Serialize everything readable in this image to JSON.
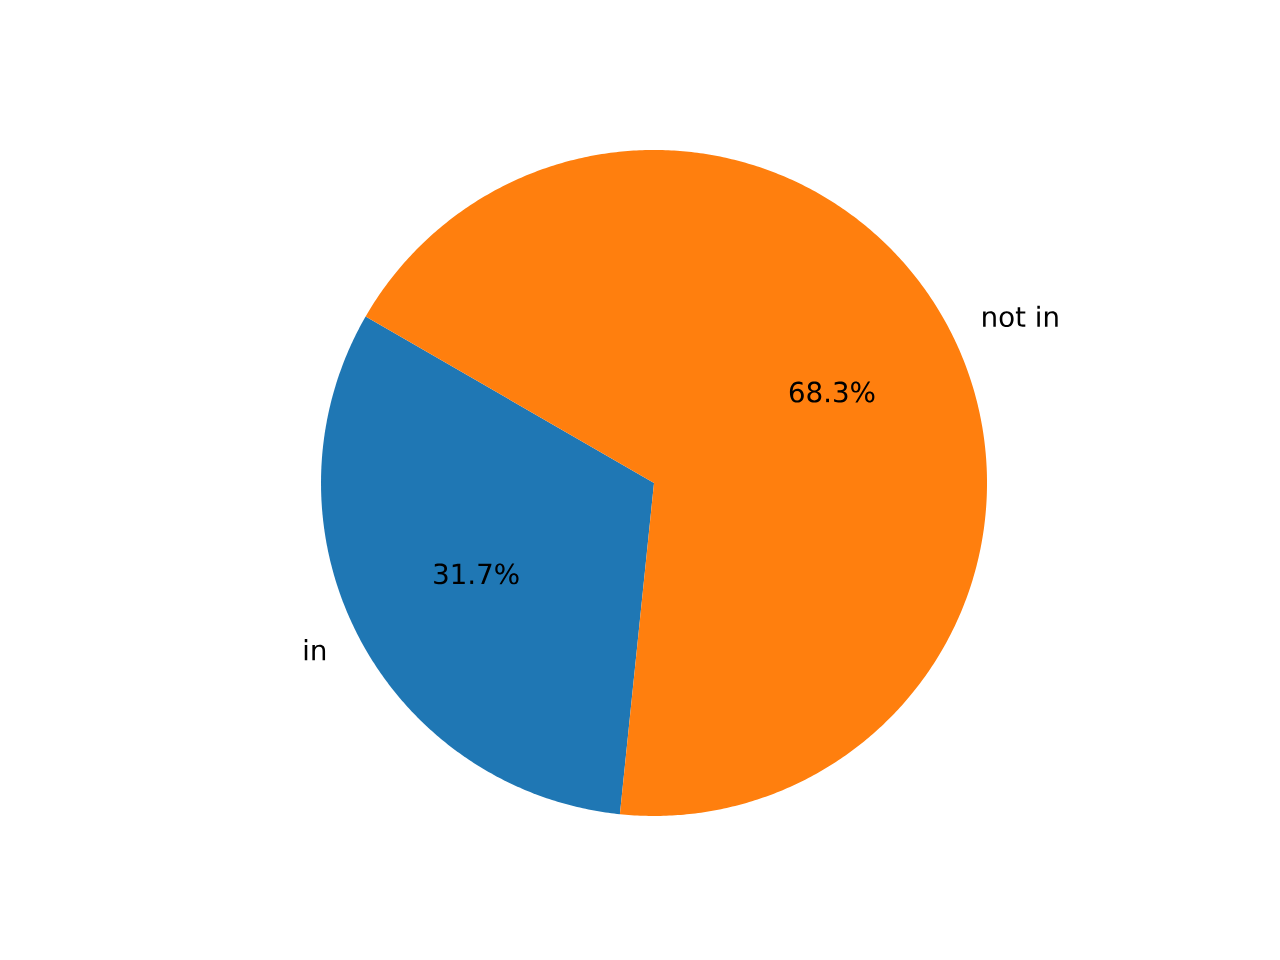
{
  "chart_data": {
    "type": "pie",
    "categories": [
      "in",
      "not in"
    ],
    "values": [
      31.7,
      68.3
    ],
    "colors": [
      "#1f77b4",
      "#ff7f0e"
    ],
    "value_labels": [
      "31.7%",
      "68.3%"
    ]
  }
}
